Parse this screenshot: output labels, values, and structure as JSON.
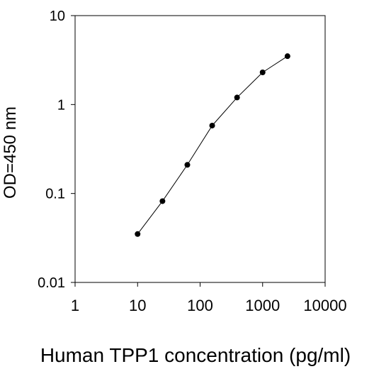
{
  "chart_data": {
    "type": "scatter",
    "xlabel": "Human TPP1 concentration (pg/ml)",
    "ylabel": "OD=450 nm",
    "x_scale": "log",
    "y_scale": "log",
    "xlim": [
      1,
      10000
    ],
    "ylim": [
      0.01,
      10
    ],
    "x_ticks": [
      1,
      10,
      100,
      1000,
      10000
    ],
    "x_tick_labels": [
      "1",
      "10",
      "100",
      "1000",
      "10000"
    ],
    "y_ticks": [
      0.01,
      0.1,
      1,
      10
    ],
    "y_tick_labels": [
      "0.01",
      "0.1",
      "1",
      "10"
    ],
    "grid": false,
    "connected": true,
    "series": [
      {
        "x": [
          10,
          25,
          62.5,
          156,
          390,
          1000,
          2500
        ],
        "y": [
          0.035,
          0.082,
          0.21,
          0.58,
          1.2,
          2.3,
          3.5
        ]
      }
    ],
    "colors": {
      "marker": "#000000",
      "line": "#000000",
      "axis": "#000000"
    }
  }
}
